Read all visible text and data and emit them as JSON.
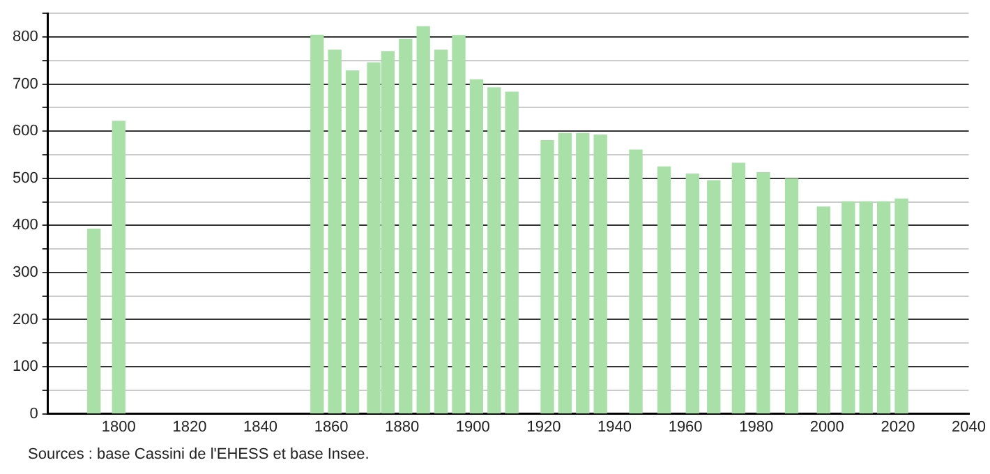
{
  "chart_data": {
    "type": "bar",
    "color": "#a8e0a8",
    "x": [
      1793,
      1800,
      1856,
      1861,
      1866,
      1872,
      1876,
      1881,
      1886,
      1891,
      1896,
      1901,
      1906,
      1911,
      1921,
      1926,
      1931,
      1936,
      1946,
      1954,
      1962,
      1968,
      1975,
      1982,
      1990,
      1999,
      2006,
      2011,
      2016,
      2021
    ],
    "values": [
      392,
      621,
      804,
      772,
      728,
      745,
      769,
      795,
      822,
      772,
      803,
      709,
      692,
      683,
      580,
      595,
      595,
      592,
      560,
      524,
      509,
      495,
      532,
      512,
      499,
      439,
      450,
      450,
      450,
      456
    ],
    "xlim": [
      1780,
      2040
    ],
    "xticks": [
      1800,
      1820,
      1840,
      1860,
      1880,
      1900,
      1920,
      1940,
      1960,
      1980,
      2000,
      2020,
      2040
    ],
    "ylim": [
      0,
      850
    ],
    "yticks": [
      0,
      {
        "value": 50,
        "label": null
      },
      100,
      {
        "value": 150,
        "label": null
      },
      200,
      {
        "value": 250,
        "label": null
      },
      300,
      {
        "value": 350,
        "label": null
      },
      400,
      {
        "value": 450,
        "label": null
      },
      500,
      {
        "value": 550,
        "label": null
      },
      600,
      {
        "value": 650,
        "label": null
      },
      700,
      {
        "value": 750,
        "label": null
      },
      800,
      {
        "value": 850,
        "label": null
      }
    ],
    "grid": "y",
    "annotations": [
      "Sources : base Cassini de l'EHESS et base Insee."
    ]
  }
}
